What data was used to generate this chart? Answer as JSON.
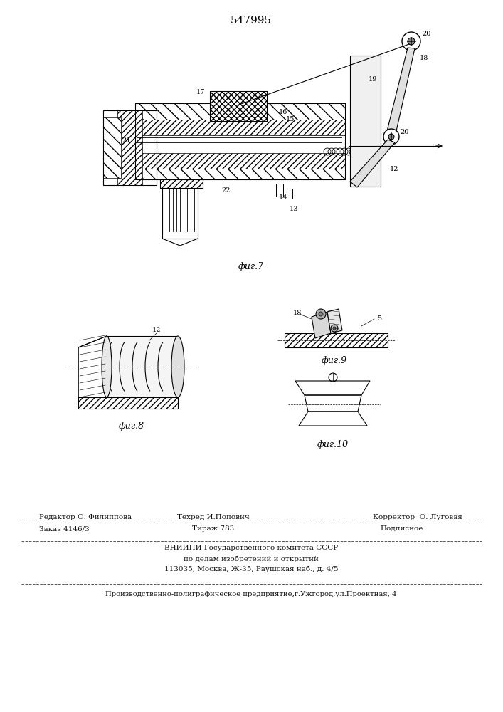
{
  "patent_number": "547995",
  "background_color": "#ffffff",
  "line_color": "#000000",
  "fig7_caption": "фиг.7",
  "fig8_caption": "фиг.8",
  "fig9_caption": "фиг.9",
  "fig10_caption": "фиг.10",
  "footer_line1_left": "Редактор О. Филиппова",
  "footer_line1_mid": "Техред И.Попович",
  "footer_line1_right": "Корректор  О. Луговая",
  "footer_line2_left": "Заказ 4146/3",
  "footer_line2_mid": "Тираж 783",
  "footer_line2_right": "Подписное",
  "footer_line3": "ВНИИПИ Государственного комитета СССР",
  "footer_line4": "по делам изобретений и открытий",
  "footer_line5": "113035, Москва, Ж-35, Раушская наб., д. 4/5",
  "footer_line6": "Производственно-полиграфическое предприятие,г.Ужгород,ул.Проектная, 4"
}
